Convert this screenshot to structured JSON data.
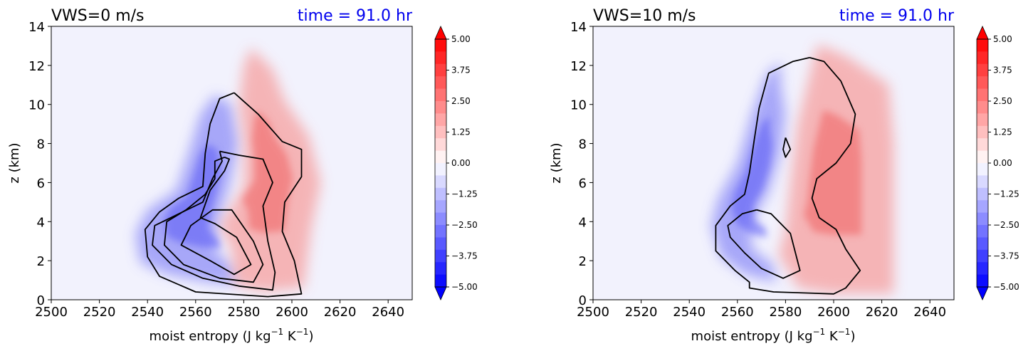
{
  "panels": [
    {
      "title": "VWS=0 m/s",
      "time_label": "time = 91.0 hr",
      "ylabel": "z (km)",
      "xlabel_main": "moist entropy (J kg",
      "xlabel_sup1": "−1",
      "xlabel_mid": " K",
      "xlabel_sup2": "−1",
      "xlabel_end": ")"
    },
    {
      "title": "VWS=10 m/s",
      "time_label": "time = 91.0 hr",
      "ylabel": "z (km)",
      "xlabel_main": "moist entropy (J kg",
      "xlabel_sup1": "−1",
      "xlabel_mid": " K",
      "xlabel_sup2": "−1",
      "xlabel_end": ")"
    }
  ],
  "colors": {
    "time_label": "#0000ee",
    "negative": "#0000ff",
    "positive": "#ff0000",
    "background_field": "#f2f2fd",
    "contour": "#000000"
  },
  "chart_data": [
    {
      "type": "heatmap",
      "title": "VWS=0 m/s",
      "subtitle": "time = 91.0 hr",
      "xlabel": "moist entropy (J kg−1 K−1)",
      "ylabel": "z (km)",
      "xlim": [
        2500,
        2650
      ],
      "ylim": [
        0,
        14
      ],
      "xticks": [
        "2500",
        "2520",
        "2540",
        "2560",
        "2580",
        "2600",
        "2620",
        "2640"
      ],
      "yticks": [
        "0",
        "2",
        "4",
        "6",
        "8",
        "10",
        "12",
        "14"
      ],
      "colorbar": {
        "range": [
          -5.0,
          5.0
        ],
        "extend": "both",
        "tick_labels": [
          "5.00",
          "3.75",
          "2.50",
          "1.25",
          "0.00",
          "−1.25",
          "−2.50",
          "−3.75",
          "−5.00"
        ],
        "levels": 20
      },
      "negative_region": [
        [
          2568,
          10.5
        ],
        [
          2562,
          9.5
        ],
        [
          2557,
          7.5
        ],
        [
          2552,
          5.6
        ],
        [
          2540,
          4.6
        ],
        [
          2535,
          3.4
        ],
        [
          2537,
          1.9
        ],
        [
          2548,
          1.3
        ],
        [
          2565,
          0.9
        ],
        [
          2578,
          0.8
        ],
        [
          2576,
          1.6
        ],
        [
          2568,
          2.6
        ],
        [
          2570,
          4.2
        ],
        [
          2574,
          5.8
        ],
        [
          2578,
          8.0
        ],
        [
          2575,
          10.0
        ]
      ],
      "positive_region": [
        [
          2583,
          12.9
        ],
        [
          2592,
          11.8
        ],
        [
          2597,
          10.2
        ],
        [
          2607,
          8.4
        ],
        [
          2612,
          6.0
        ],
        [
          2608,
          3.6
        ],
        [
          2605,
          0.6
        ],
        [
          2588,
          0.4
        ],
        [
          2576,
          0.8
        ],
        [
          2575,
          2.6
        ],
        [
          2570,
          3.8
        ],
        [
          2580,
          5.8
        ],
        [
          2580,
          8.0
        ],
        [
          2578,
          10.0
        ],
        [
          2580,
          12.0
        ]
      ],
      "contours": [
        [
          [
            2576,
            10.6
          ],
          [
            2586,
            9.5
          ],
          [
            2596,
            8.1
          ],
          [
            2604,
            7.7
          ],
          [
            2604,
            6.3
          ],
          [
            2597,
            5.0
          ],
          [
            2596,
            3.5
          ],
          [
            2601,
            2.0
          ],
          [
            2604,
            0.3
          ],
          [
            2590,
            0.16
          ],
          [
            2560,
            0.4
          ],
          [
            2545,
            1.2
          ],
          [
            2540,
            2.2
          ],
          [
            2539,
            3.6
          ],
          [
            2545,
            4.5
          ],
          [
            2553,
            5.2
          ],
          [
            2563,
            5.8
          ],
          [
            2564,
            7.5
          ],
          [
            2566,
            9.0
          ],
          [
            2570,
            10.3
          ],
          [
            2576,
            10.6
          ]
        ],
        [
          [
            2570,
            7.6
          ],
          [
            2578,
            7.4
          ],
          [
            2588,
            7.2
          ],
          [
            2592,
            6.0
          ],
          [
            2588,
            4.8
          ],
          [
            2590,
            3.0
          ],
          [
            2593,
            1.4
          ],
          [
            2592,
            0.5
          ],
          [
            2578,
            0.7
          ],
          [
            2563,
            1.1
          ],
          [
            2550,
            1.8
          ],
          [
            2542,
            2.8
          ],
          [
            2543,
            3.8
          ],
          [
            2553,
            4.4
          ],
          [
            2563,
            5.0
          ],
          [
            2567,
            6.2
          ],
          [
            2571,
            7.1
          ],
          [
            2570,
            7.6
          ]
        ],
        [
          [
            2572,
            7.3
          ],
          [
            2568,
            7.1
          ],
          [
            2568,
            6.2
          ],
          [
            2564,
            5.4
          ],
          [
            2556,
            4.6
          ],
          [
            2548,
            4.0
          ],
          [
            2547,
            2.8
          ],
          [
            2555,
            1.8
          ],
          [
            2570,
            1.1
          ],
          [
            2584,
            0.9
          ],
          [
            2588,
            1.8
          ],
          [
            2584,
            3.0
          ],
          [
            2575,
            4.6
          ],
          [
            2567,
            4.6
          ],
          [
            2558,
            3.8
          ],
          [
            2554,
            2.8
          ],
          [
            2566,
            2.0
          ],
          [
            2576,
            1.3
          ],
          [
            2583,
            1.8
          ],
          [
            2577,
            3.2
          ],
          [
            2568,
            3.9
          ],
          [
            2562,
            4.2
          ],
          [
            2566,
            5.6
          ],
          [
            2572,
            6.6
          ],
          [
            2574,
            7.2
          ],
          [
            2572,
            7.3
          ]
        ]
      ]
    },
    {
      "type": "heatmap",
      "title": "VWS=10 m/s",
      "subtitle": "time = 91.0 hr",
      "xlabel": "moist entropy (J kg−1 K−1)",
      "ylabel": "z (km)",
      "xlim": [
        2500,
        2650
      ],
      "ylim": [
        0,
        14
      ],
      "xticks": [
        "2500",
        "2520",
        "2540",
        "2560",
        "2580",
        "2600",
        "2620",
        "2640"
      ],
      "yticks": [
        "0",
        "2",
        "4",
        "6",
        "8",
        "10",
        "12",
        "14"
      ],
      "colorbar": {
        "range": [
          -5.0,
          5.0
        ],
        "extend": "both",
        "tick_labels": [
          "5.00",
          "3.75",
          "2.50",
          "1.25",
          "0.00",
          "−1.25",
          "−2.50",
          "−3.75",
          "−5.00"
        ],
        "levels": 20
      },
      "negative_region": [
        [
          2578,
          12.2
        ],
        [
          2572,
          11.5
        ],
        [
          2566,
          9.5
        ],
        [
          2560,
          7.0
        ],
        [
          2552,
          5.2
        ],
        [
          2549,
          3.8
        ],
        [
          2553,
          2.2
        ],
        [
          2563,
          1.3
        ],
        [
          2576,
          0.9
        ],
        [
          2575,
          1.8
        ],
        [
          2566,
          2.6
        ],
        [
          2566,
          4.0
        ],
        [
          2573,
          5.5
        ],
        [
          2578,
          7.5
        ],
        [
          2580,
          9.5
        ],
        [
          2578,
          11.0
        ]
      ],
      "positive_region": [
        [
          2595,
          13.0
        ],
        [
          2605,
          12.5
        ],
        [
          2623,
          11.0
        ],
        [
          2625,
          8.0
        ],
        [
          2625,
          3.0
        ],
        [
          2625,
          0.3
        ],
        [
          2600,
          0.3
        ],
        [
          2585,
          0.6
        ],
        [
          2582,
          1.3
        ],
        [
          2577,
          2.3
        ],
        [
          2580,
          3.6
        ],
        [
          2582,
          6.0
        ],
        [
          2585,
          9.0
        ],
        [
          2590,
          11.5
        ],
        [
          2593,
          13.0
        ]
      ],
      "contours": [
        [
          [
            2590,
            12.4
          ],
          [
            2596,
            12.2
          ],
          [
            2603,
            11.2
          ],
          [
            2609,
            9.5
          ],
          [
            2607,
            8.0
          ],
          [
            2601,
            7.0
          ],
          [
            2593,
            6.2
          ],
          [
            2591,
            5.2
          ],
          [
            2594,
            4.2
          ],
          [
            2601,
            3.6
          ],
          [
            2605,
            2.6
          ],
          [
            2611,
            1.5
          ],
          [
            2605,
            0.6
          ],
          [
            2600,
            0.3
          ],
          [
            2575,
            0.4
          ],
          [
            2565,
            0.6
          ],
          [
            2565,
            0.9
          ],
          [
            2559,
            1.5
          ],
          [
            2551,
            2.5
          ],
          [
            2551,
            3.8
          ],
          [
            2557,
            4.8
          ],
          [
            2563,
            5.4
          ],
          [
            2565,
            6.5
          ],
          [
            2567,
            8.2
          ],
          [
            2569,
            9.8
          ],
          [
            2573,
            11.6
          ],
          [
            2583,
            12.2
          ],
          [
            2590,
            12.4
          ]
        ],
        [
          [
            2580,
            8.3
          ],
          [
            2582,
            7.7
          ],
          [
            2580,
            7.3
          ],
          [
            2579,
            7.7
          ],
          [
            2580,
            8.3
          ]
        ],
        [
          [
            2568,
            4.6
          ],
          [
            2574,
            4.4
          ],
          [
            2582,
            3.4
          ],
          [
            2586,
            1.5
          ],
          [
            2579,
            1.1
          ],
          [
            2570,
            1.6
          ],
          [
            2563,
            2.4
          ],
          [
            2557,
            3.2
          ],
          [
            2556,
            3.8
          ],
          [
            2562,
            4.4
          ],
          [
            2568,
            4.6
          ]
        ]
      ]
    }
  ]
}
